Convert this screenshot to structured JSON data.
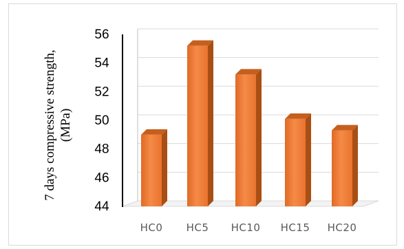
{
  "chart_data": {
    "type": "bar",
    "categories": [
      "HC0",
      "HC5",
      "HC10",
      "HC15",
      "HC20"
    ],
    "values": [
      49.0,
      55.2,
      53.2,
      50.1,
      49.3
    ],
    "ylabel_line1": "7 days compressive strength,",
    "ylabel_line2": "(MPa)",
    "ylim": [
      44,
      56
    ],
    "yticks": [
      "44",
      "46",
      "48",
      "50",
      "52",
      "54",
      "56"
    ],
    "grid": true,
    "legend": "none",
    "style": "3d-bar",
    "bar_color": "#ED7D31",
    "bar_side_color": "#A94F14",
    "bar_top_color": "#C65F1E"
  }
}
